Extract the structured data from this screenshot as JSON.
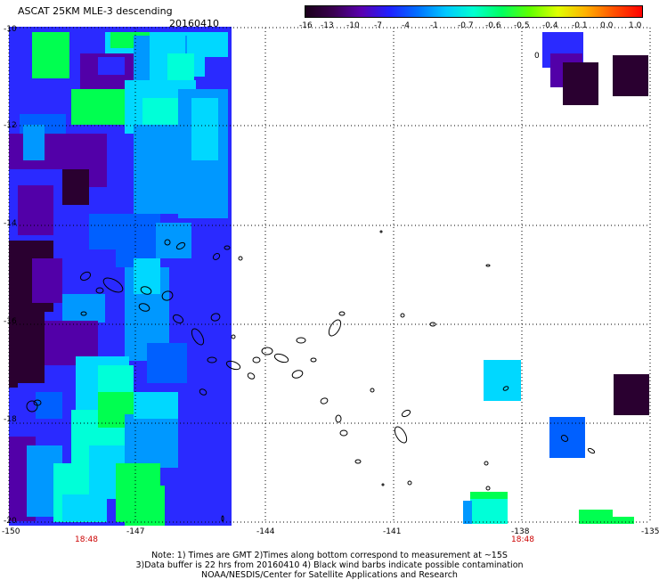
{
  "header": {
    "title": "ASCAT 25KM MLE-3 descending",
    "date": "20160410"
  },
  "colorbar": {
    "ticks": [
      "-16",
      "-13",
      "-10",
      "-7",
      "-4",
      "-1",
      "-0.7",
      "-0.6",
      "-0.5",
      "-0.4",
      "-0.1",
      "0.0",
      "1.0"
    ],
    "colors": [
      "#1a001a",
      "#3a0050",
      "#5a00b0",
      "#2020ff",
      "#0070ff",
      "#00c8ff",
      "#00ffd0",
      "#00ff60",
      "#60ff00",
      "#e0ff00",
      "#ffb000",
      "#ff5000",
      "#ff0000"
    ]
  },
  "axes": {
    "lat_labels": [
      "-10",
      "-12",
      "-14",
      "-16",
      "-18",
      "-20"
    ],
    "lon_labels": [
      "-150",
      "-147",
      "-144",
      "-141",
      "-138",
      "-135"
    ],
    "time_labels": [
      "18:48",
      "18:48"
    ],
    "inset_label": "0"
  },
  "notes": {
    "line1": "Note: 1) Times are GMT 2)Times along bottom correspond to measurement at ~15S",
    "line2": "3)Data buffer is 22 hrs from 20160410 4) Black wind barbs indicate possible contamination",
    "line3": "NOAA/NESDIS/Center for Satellite Applications and Research"
  },
  "palette": {
    "deep_purple": "#2a0030",
    "purple": "#5200a8",
    "blue": "#2a2aff",
    "mid_blue": "#0060ff",
    "light_blue": "#0098ff",
    "cyan": "#00d8ff",
    "aqua": "#00ffd8",
    "green": "#00ff50",
    "land": "#000000"
  }
}
